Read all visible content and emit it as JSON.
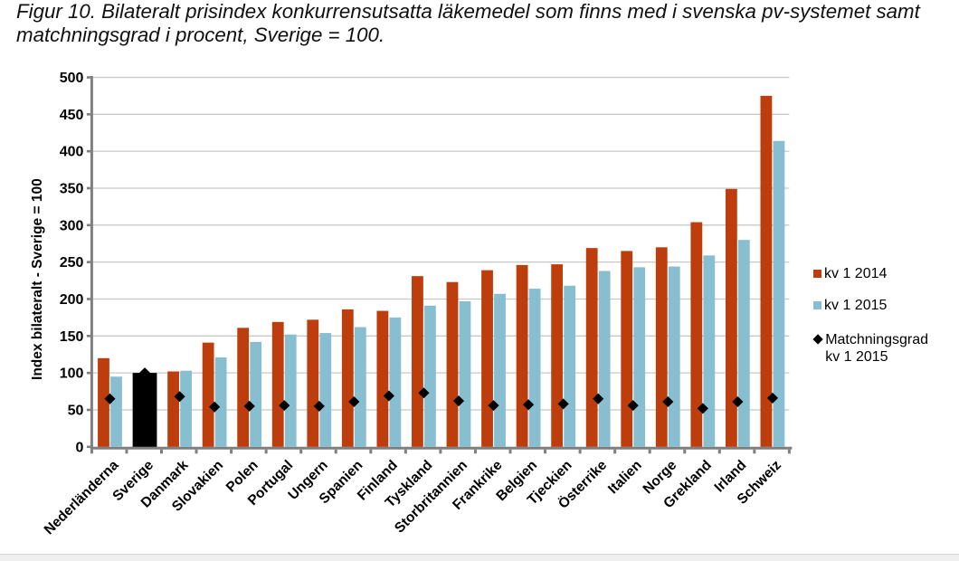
{
  "figure": {
    "title_line1": "Figur 10. Bilateralt prisindex konkurrensutsatta läkemedel som finns med i svenska pv-systemet samt",
    "title_line2": "matchningsgrad i procent, Sverige = 100."
  },
  "chart_data": {
    "type": "bar",
    "title": "Figur 10. Bilateralt prisindex konkurrensutsatta läkemedel som finns med i svenska pv-systemet samt matchningsgrad i procent, Sverige = 100.",
    "xlabel": "",
    "ylabel": "Index bilateralt - Sverige = 100",
    "ylim": [
      0,
      500
    ],
    "yticks": [
      0,
      50,
      100,
      150,
      200,
      250,
      300,
      350,
      400,
      450,
      500
    ],
    "grid": true,
    "legend_position": "right",
    "categories": [
      "Nederländerna",
      "Sverige",
      "Danmark",
      "Slovakien",
      "Polen",
      "Portugal",
      "Ungern",
      "Spanien",
      "Finland",
      "Tyskland",
      "Storbritannien",
      "Frankrike",
      "Belgien",
      "Tjeckien",
      "Österrike",
      "Italien",
      "Norge",
      "Grekland",
      "Irland",
      "Schweiz"
    ],
    "series": [
      {
        "name": "kv 1 2014",
        "type": "bar",
        "color": "#bd3d0c",
        "values": [
          120,
          100,
          102,
          141,
          161,
          169,
          172,
          186,
          184,
          231,
          223,
          239,
          246,
          247,
          269,
          265,
          270,
          304,
          349,
          475
        ]
      },
      {
        "name": "kv 1 2015",
        "type": "bar",
        "color": "#88bfd0",
        "values": [
          95,
          100,
          103,
          121,
          142,
          152,
          154,
          162,
          175,
          191,
          197,
          207,
          214,
          218,
          238,
          243,
          244,
          259,
          280,
          414
        ]
      },
      {
        "name": "Matchningsgrad kv 1 2015",
        "type": "diamond",
        "color": "#000000",
        "values": [
          65,
          100,
          68,
          54,
          55,
          56,
          55,
          61,
          69,
          73,
          62,
          56,
          57,
          58,
          65,
          56,
          61,
          52,
          61,
          66
        ]
      }
    ],
    "highlight": {
      "category": "Sverige",
      "color": "#000000"
    },
    "colors": {
      "grid": "#c8c8c8",
      "axis": "#7f7f7f",
      "tick_label": "#000000"
    }
  }
}
